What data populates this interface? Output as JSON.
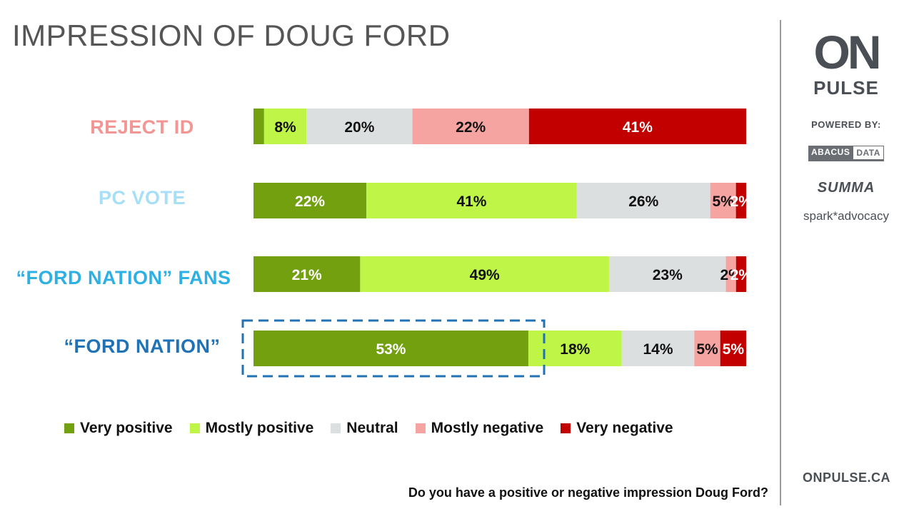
{
  "title": "IMPRESSION OF DOUG FORD",
  "question": "Do you have a positive or negative impression Doug Ford?",
  "colors": {
    "very_positive": "#72a00e",
    "mostly_positive": "#bef546",
    "neutral": "#dcdfdf",
    "mostly_negative": "#f6a4a2",
    "very_negative": "#c20000",
    "highlight_box": "#1f72b5"
  },
  "chart_data": {
    "type": "bar",
    "orientation": "horizontal",
    "stacked": true,
    "categories": [
      "REJECT ID",
      "PC VOTE",
      "“FORD NATION” FANS",
      "“FORD NATION”"
    ],
    "category_colors": [
      "#f39592",
      "#a6dff7",
      "#2db0e3",
      "#1f72b5"
    ],
    "series": [
      {
        "name": "Very positive",
        "color": "#72a00e",
        "values": [
          2,
          22,
          21,
          53
        ],
        "labels": [
          "",
          "22%",
          "21%",
          "53%"
        ]
      },
      {
        "name": "Mostly positive",
        "color": "#bef546",
        "values": [
          8,
          41,
          49,
          18
        ],
        "labels": [
          "8%",
          "41%",
          "49%",
          "18%"
        ]
      },
      {
        "name": "Neutral",
        "color": "#dcdfdf",
        "values": [
          20,
          26,
          23,
          14
        ],
        "labels": [
          "20%",
          "26%",
          "23%",
          "14%"
        ]
      },
      {
        "name": "Mostly negative",
        "color": "#f6a4a2",
        "values": [
          22,
          5,
          2,
          5
        ],
        "labels": [
          "22%",
          "5%",
          "2%",
          "5%"
        ]
      },
      {
        "name": "Very negative",
        "color": "#c20000",
        "values": [
          41,
          2,
          2,
          5
        ],
        "labels": [
          "41%",
          "2%",
          "2%",
          "5%"
        ]
      }
    ],
    "highlight": {
      "category": "“FORD NATION”",
      "series": "Very positive"
    },
    "legend_position": "bottom",
    "grid": false
  },
  "legend": [
    {
      "label": "Very positive",
      "color": "#72a00e"
    },
    {
      "label": "Mostly positive",
      "color": "#bef546"
    },
    {
      "label": "Neutral",
      "color": "#dcdfdf"
    },
    {
      "label": "Mostly negative",
      "color": "#f6a4a2"
    },
    {
      "label": "Very negative",
      "color": "#c20000"
    }
  ],
  "sidebar": {
    "logo_on": "ON",
    "logo_pulse": "PULSE",
    "powered_by": "POWERED BY:",
    "abacus_left": "ABACUS",
    "abacus_right": "DATA",
    "summa": "SUMMA",
    "spark": "spark*advocacy",
    "website": "ONPULSE.CA"
  }
}
